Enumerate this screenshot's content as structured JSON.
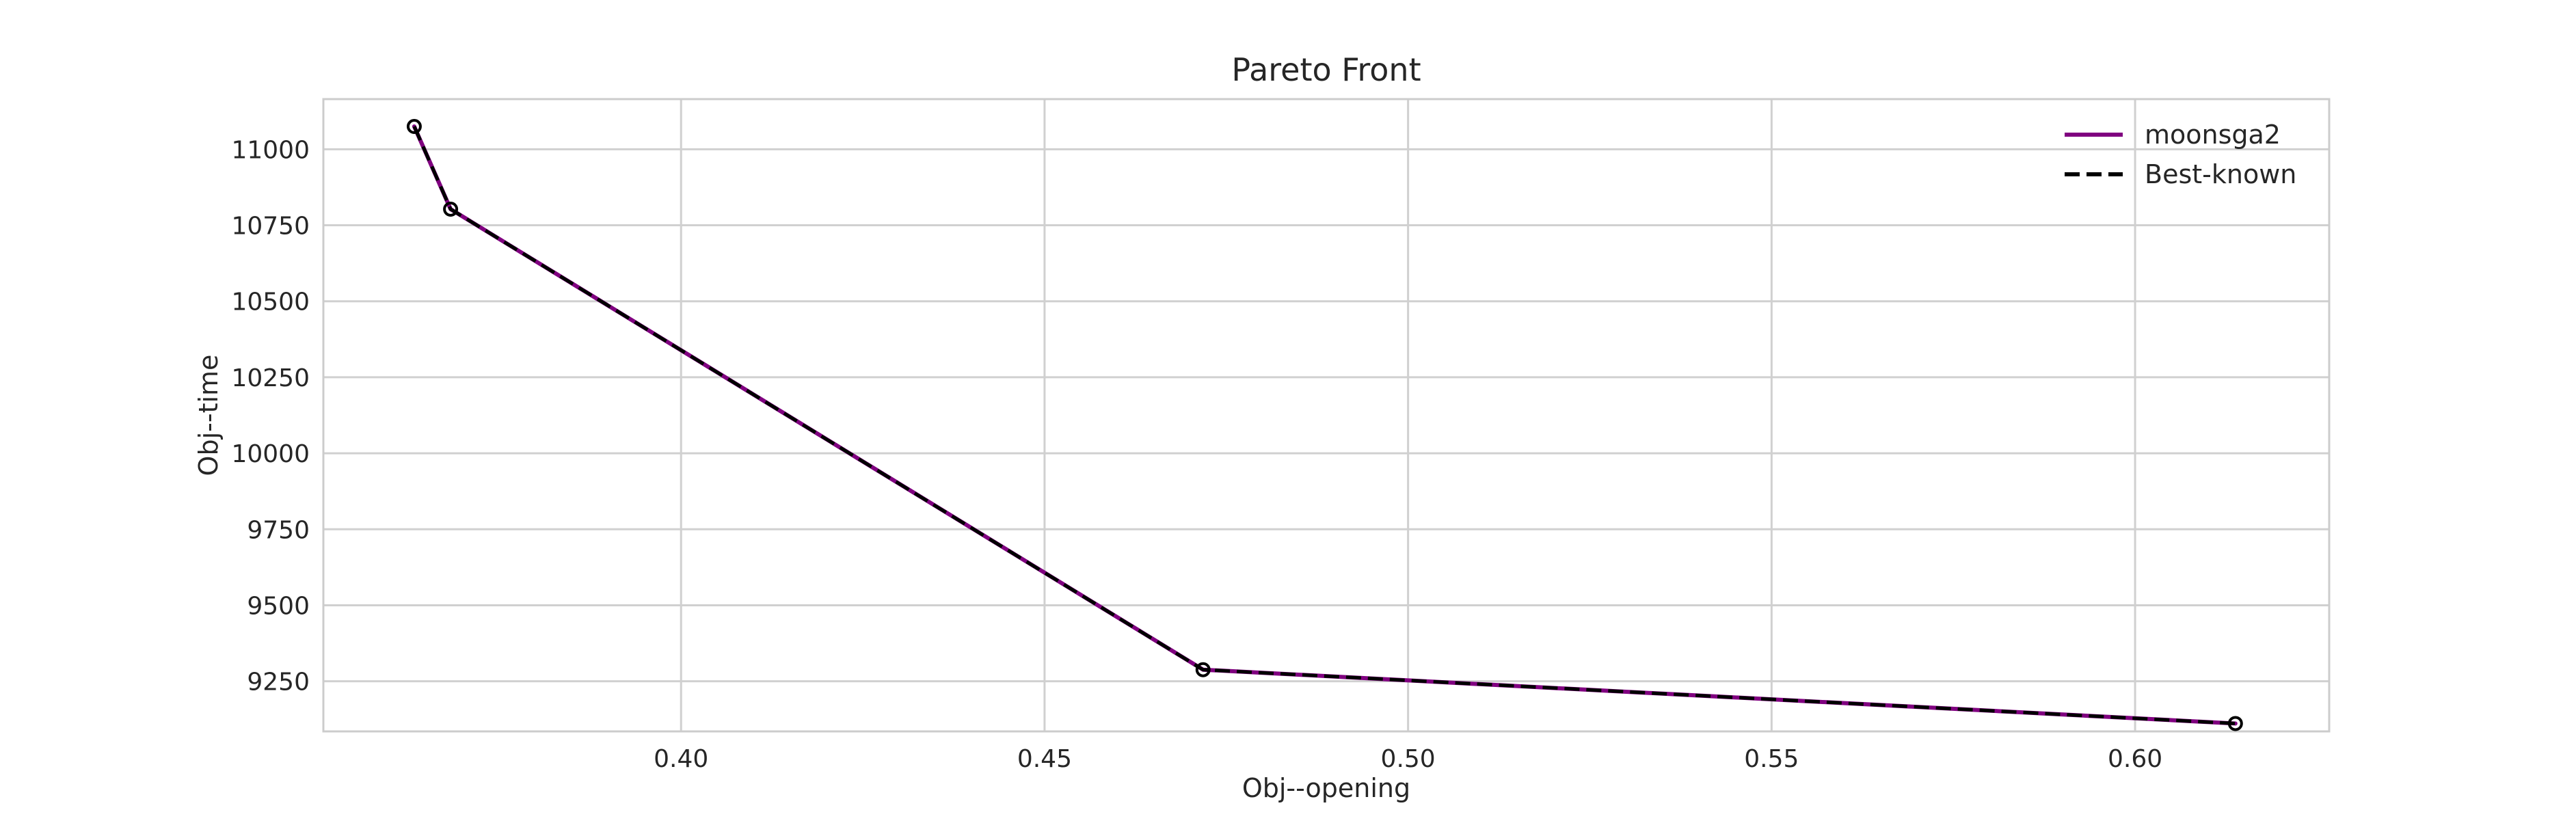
{
  "chart_data": {
    "type": "line",
    "title": "Pareto Front",
    "xlabel": "Obj--opening",
    "ylabel": "Obj--time",
    "xlim": [
      0.3508,
      0.6267
    ],
    "ylim": [
      9085,
      11165
    ],
    "x_ticks": [
      0.4,
      0.45,
      0.5,
      0.55,
      0.6
    ],
    "x_tick_labels": [
      "0.40",
      "0.45",
      "0.50",
      "0.55",
      "0.60"
    ],
    "y_ticks": [
      9250,
      9500,
      9750,
      10000,
      10250,
      10500,
      10750,
      11000
    ],
    "y_tick_labels": [
      "9250",
      "9500",
      "9750",
      "10000",
      "10250",
      "10500",
      "10750",
      "11000"
    ],
    "grid": true,
    "legend_position": "top-right",
    "series": [
      {
        "name": "moonsga2",
        "color": "#800080",
        "style": "solid",
        "x": [
          0.3633,
          0.3683,
          0.4718,
          0.6138
        ],
        "y": [
          11075,
          10803,
          9288,
          9111
        ]
      },
      {
        "name": "Best-known",
        "color": "#000000",
        "style": "dashed",
        "markers": "open-circle",
        "x": [
          0.3633,
          0.3683,
          0.4718,
          0.6138
        ],
        "y": [
          11075,
          10803,
          9288,
          9111
        ]
      }
    ]
  }
}
